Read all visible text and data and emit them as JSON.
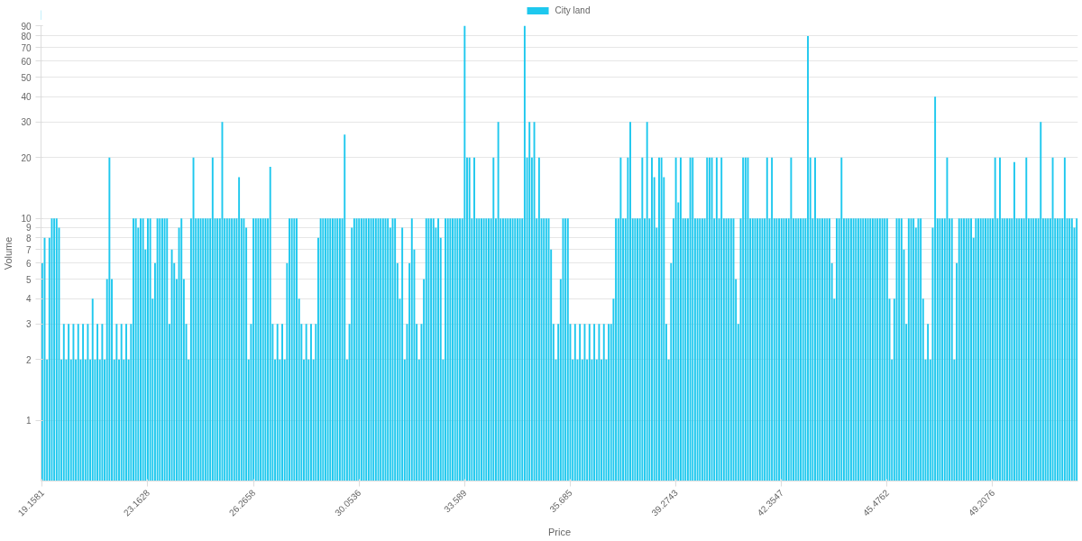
{
  "chart_data": {
    "type": "bar",
    "xlabel": "Price",
    "ylabel": "Volume",
    "categories": [
      "19.1581",
      null,
      null,
      null,
      null,
      null,
      null,
      null,
      null,
      null,
      null,
      null,
      null,
      null,
      null,
      null,
      null,
      null,
      null,
      null,
      null,
      null,
      null,
      null,
      null,
      null,
      null,
      null,
      null,
      null,
      null,
      null,
      null,
      null,
      null,
      null,
      null,
      null,
      null,
      null,
      null,
      null,
      null,
      null,
      "23.1628",
      null,
      null,
      null,
      null,
      null,
      null,
      null,
      null,
      null,
      null,
      null,
      null,
      null,
      null,
      null,
      null,
      null,
      null,
      null,
      null,
      null,
      null,
      null,
      null,
      null,
      null,
      null,
      null,
      null,
      null,
      null,
      null,
      null,
      null,
      null,
      null,
      null,
      null,
      null,
      null,
      null,
      null,
      null,
      "26.2658",
      null,
      null,
      null,
      null,
      null,
      null,
      null,
      null,
      null,
      null,
      null,
      null,
      null,
      null,
      null,
      null,
      null,
      null,
      null,
      null,
      null,
      null,
      null,
      null,
      null,
      null,
      null,
      null,
      null,
      null,
      null,
      null,
      null,
      null,
      null,
      null,
      null,
      null,
      null,
      null,
      null,
      null,
      null,
      "30.0536",
      null,
      null,
      null,
      null,
      null,
      null,
      null,
      null,
      null,
      null,
      null,
      null,
      null,
      null,
      null,
      null,
      null,
      null,
      null,
      null,
      null,
      null,
      null,
      null,
      null,
      null,
      null,
      null,
      null,
      null,
      null,
      null,
      null,
      null,
      null,
      null,
      null,
      null,
      null,
      null,
      null,
      null,
      null,
      "33.589",
      null,
      null,
      null,
      null,
      null,
      null,
      null,
      null,
      null,
      null,
      null,
      null,
      null,
      null,
      null,
      null,
      null,
      null,
      null,
      null,
      null,
      null,
      null,
      null,
      null,
      null,
      null,
      null,
      null,
      null,
      null,
      null,
      null,
      null,
      null,
      null,
      null,
      null,
      null,
      null,
      null,
      null,
      null,
      "35.685",
      null,
      null,
      null,
      null,
      null,
      null,
      null,
      null,
      null,
      null,
      null,
      null,
      null,
      null,
      null,
      null,
      null,
      null,
      null,
      null,
      null,
      null,
      null,
      null,
      null,
      null,
      null,
      null,
      null,
      null,
      null,
      null,
      null,
      null,
      null,
      null,
      null,
      null,
      null,
      null,
      null,
      null,
      null,
      "39.2743",
      null,
      null,
      null,
      null,
      null,
      null,
      null,
      null,
      null,
      null,
      null,
      null,
      null,
      null,
      null,
      null,
      null,
      null,
      null,
      null,
      null,
      null,
      null,
      null,
      null,
      null,
      null,
      null,
      null,
      null,
      null,
      null,
      null,
      null,
      null,
      null,
      null,
      null,
      null,
      null,
      null,
      null,
      null,
      "42.3547",
      null,
      null,
      null,
      null,
      null,
      null,
      null,
      null,
      null,
      null,
      null,
      null,
      null,
      null,
      null,
      null,
      null,
      null,
      null,
      null,
      null,
      null,
      null,
      null,
      null,
      null,
      null,
      null,
      null,
      null,
      null,
      null,
      null,
      null,
      null,
      null,
      null,
      null,
      null,
      null,
      null,
      null,
      null,
      "45.4762",
      null,
      null,
      null,
      null,
      null,
      null,
      null,
      null,
      null,
      null,
      null,
      null,
      null,
      null,
      null,
      null,
      null,
      null,
      null,
      null,
      null,
      null,
      null,
      null,
      null,
      null,
      null,
      null,
      null,
      null,
      null,
      null,
      null,
      null,
      null,
      null,
      null,
      null,
      null,
      null,
      null,
      null,
      null,
      "49.2076",
      null,
      null,
      null,
      null,
      null,
      null,
      null,
      null,
      null,
      null,
      null,
      null,
      null,
      null,
      null,
      null,
      null,
      null,
      null,
      null,
      null,
      null,
      null,
      null,
      null,
      null,
      null,
      null,
      null,
      null,
      null,
      null,
      null,
      null,
      null
    ],
    "series": [
      {
        "name": "City land",
        "color": "#1ec8ee",
        "values": [
          6,
          8,
          2,
          8,
          10,
          10,
          10,
          9,
          2,
          3,
          2,
          3,
          2,
          3,
          2,
          3,
          2,
          3,
          2,
          3,
          2,
          4,
          2,
          3,
          2,
          3,
          2,
          5,
          20,
          5,
          2,
          3,
          2,
          3,
          2,
          3,
          2,
          3,
          10,
          10,
          9,
          10,
          10,
          7,
          10,
          10,
          4,
          6,
          10,
          10,
          10,
          10,
          10,
          3,
          7,
          6,
          5,
          9,
          10,
          5,
          3,
          2,
          10,
          20,
          10,
          10,
          10,
          10,
          10,
          10,
          10,
          20,
          10,
          10,
          10,
          30,
          10,
          10,
          10,
          10,
          10,
          10,
          16,
          10,
          10,
          9,
          2,
          3,
          10,
          10,
          10,
          10,
          10,
          10,
          10,
          18,
          3,
          2,
          3,
          2,
          3,
          2,
          6,
          10,
          10,
          10,
          10,
          4,
          3,
          2,
          3,
          2,
          3,
          2,
          3,
          8,
          10,
          10,
          10,
          10,
          10,
          10,
          10,
          10,
          10,
          10,
          26,
          2,
          3,
          9,
          10,
          10,
          10,
          10,
          10,
          10,
          10,
          10,
          10,
          10,
          10,
          10,
          10,
          10,
          10,
          9,
          10,
          10,
          6,
          4,
          9,
          2,
          3,
          6,
          10,
          7,
          3,
          2,
          3,
          5,
          10,
          10,
          10,
          10,
          9,
          10,
          8,
          2,
          10,
          10,
          10,
          10,
          10,
          10,
          10,
          10,
          90,
          20,
          20,
          10,
          20,
          10,
          10,
          10,
          10,
          10,
          10,
          10,
          20,
          10,
          30,
          10,
          10,
          10,
          10,
          10,
          10,
          10,
          10,
          10,
          10,
          90,
          20,
          30,
          20,
          30,
          10,
          20,
          10,
          10,
          10,
          10,
          7,
          3,
          2,
          3,
          5,
          10,
          10,
          10,
          3,
          2,
          3,
          2,
          3,
          2,
          3,
          2,
          3,
          2,
          3,
          2,
          3,
          2,
          3,
          2,
          3,
          3,
          4,
          10,
          10,
          20,
          10,
          10,
          20,
          30,
          10,
          10,
          10,
          10,
          20,
          10,
          30,
          10,
          20,
          16,
          9,
          20,
          20,
          16,
          3,
          2,
          6,
          10,
          20,
          12,
          20,
          10,
          10,
          10,
          20,
          20,
          10,
          10,
          10,
          10,
          10,
          20,
          20,
          20,
          10,
          20,
          10,
          20,
          10,
          10,
          10,
          10,
          10,
          5,
          3,
          10,
          20,
          20,
          20,
          10,
          10,
          10,
          10,
          10,
          10,
          10,
          20,
          10,
          20,
          10,
          10,
          10,
          10,
          10,
          10,
          10,
          20,
          10,
          10,
          10,
          10,
          10,
          10,
          80,
          20,
          10,
          20,
          10,
          10,
          10,
          10,
          10,
          10,
          6,
          4,
          10,
          10,
          20,
          10,
          10,
          10,
          10,
          10,
          10,
          10,
          10,
          10,
          10,
          10,
          10,
          10,
          10,
          10,
          10,
          10,
          10,
          10,
          4,
          2,
          4,
          10,
          10,
          10,
          7,
          3,
          10,
          10,
          10,
          9,
          10,
          10,
          4,
          2,
          3,
          2,
          9,
          40,
          10,
          10,
          10,
          10,
          20,
          10,
          10,
          2,
          6,
          10,
          10,
          10,
          10,
          10,
          10,
          8,
          10,
          10,
          10,
          10,
          10,
          10,
          10,
          10,
          20,
          10,
          20,
          10,
          10,
          10,
          10,
          10,
          19,
          10,
          10,
          10,
          10,
          20,
          10,
          10,
          10,
          10,
          10,
          30,
          10,
          10,
          10,
          10,
          20,
          10,
          10,
          10,
          10,
          20,
          10,
          10,
          10,
          9,
          10
        ]
      }
    ],
    "log": true,
    "ylim": [
      0.5,
      90
    ],
    "yticks": [
      1,
      2,
      3,
      4,
      5,
      6,
      7,
      8,
      9,
      10,
      20,
      30,
      40,
      50,
      60,
      70,
      80,
      90
    ],
    "grid": "y",
    "legend": "top"
  }
}
